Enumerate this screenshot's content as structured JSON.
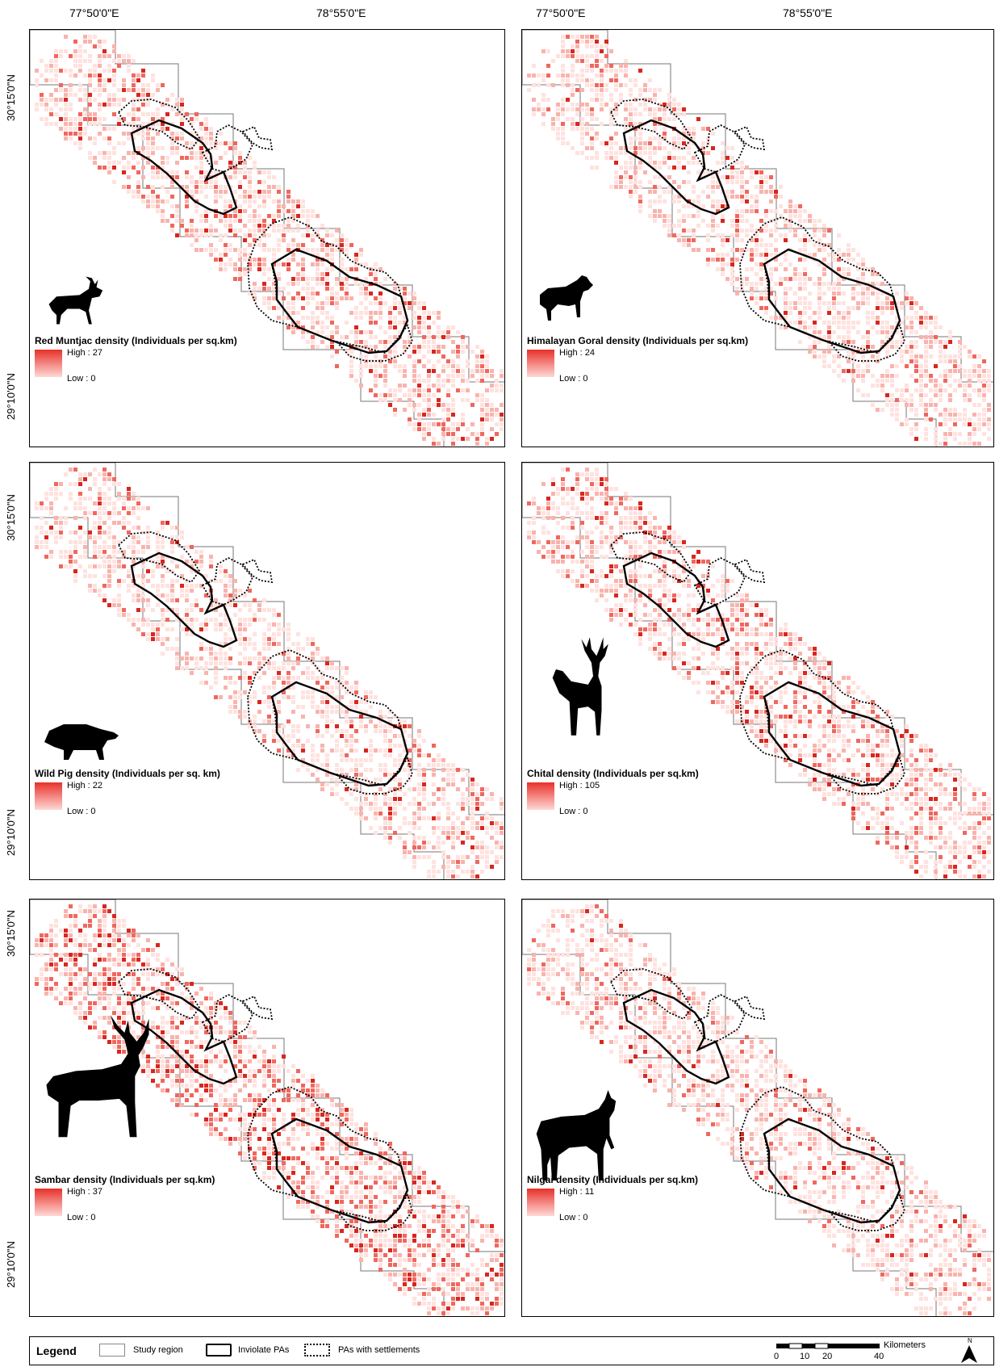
{
  "graticule": {
    "lon_labels": [
      "77°50'0\"E",
      "78°55'0\"E",
      "77°50'0\"E",
      "78°55'0\"E"
    ],
    "lat_labels": [
      "30°15'0\"N",
      "29°10'0\"N",
      "30°15'0\"N",
      "29°10'0\"N",
      "30°15'0\"N",
      "29°10'0\"N"
    ]
  },
  "panels": [
    {
      "title": "Red Muntjac density (Individuals per sq.km)",
      "high": "High : 27",
      "low": "Low : 0",
      "animal": "muntjac-icon"
    },
    {
      "title": "Himalayan Goral density (Individuals per sq.km)",
      "high": "High : 24",
      "low": "Low : 0",
      "animal": "goral-icon"
    },
    {
      "title": "Wild Pig density (Individuals per sq. km)",
      "high": "High : 22",
      "low": "Low : 0",
      "animal": "wild-pig-icon"
    },
    {
      "title": "Chital density (Individuals per sq.km)",
      "high": "High : 105",
      "low": "Low : 0",
      "animal": "chital-icon"
    },
    {
      "title": "Sambar density (Individuals per sq.km)",
      "high": "High : 37",
      "low": "Low : 0",
      "animal": "sambar-icon"
    },
    {
      "title": "Nilgai density (Individuals per sq.km)",
      "high": "High : 11",
      "low": "Low : 0",
      "animal": "nilgai-icon"
    }
  ],
  "legend": {
    "title": "Legend",
    "items": [
      "Study region",
      "Inviolate PAs",
      "PAs with settlements"
    ],
    "scale_unit": "Kilometers",
    "scale_ticks": [
      "0",
      "10",
      "20",
      "40"
    ],
    "north": "N"
  },
  "colors": {
    "high": "#e8312a",
    "low": "#ffd8d4",
    "boundary": "#000000"
  }
}
